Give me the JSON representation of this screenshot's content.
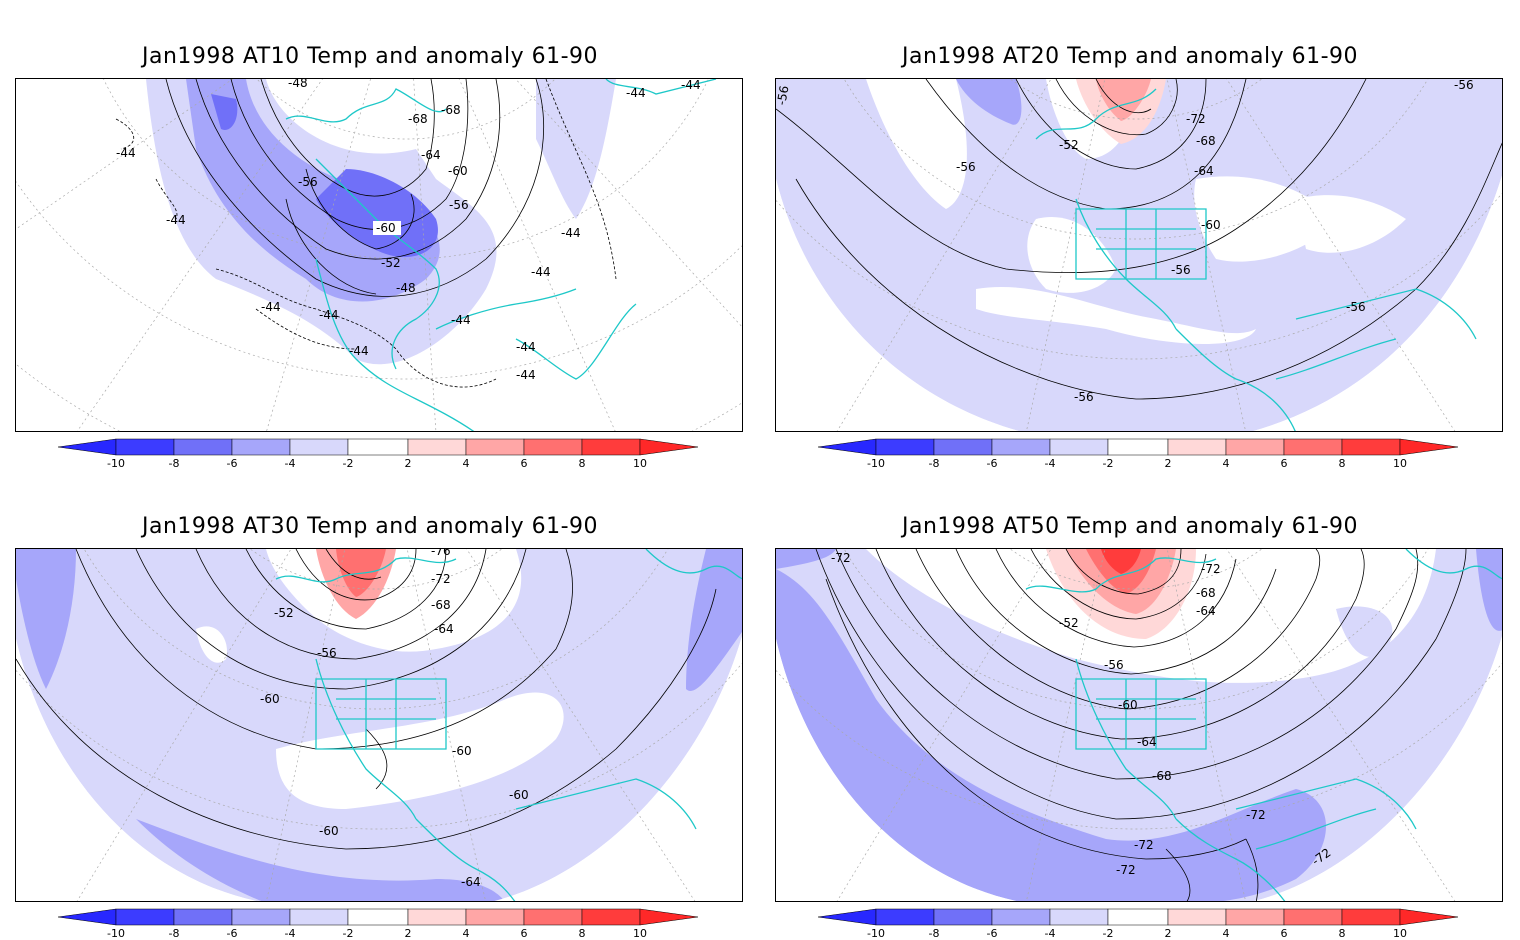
{
  "colorbar": {
    "ticks": [
      "-10",
      "-8",
      "-6",
      "-4",
      "-2",
      "2",
      "4",
      "6",
      "8",
      "10"
    ],
    "colors": {
      "lt_neg10": "#2828ff",
      "neg10_neg8": "#3c3cff",
      "neg8_neg6": "#7070f8",
      "neg6_neg4": "#a6a6fa",
      "neg4_neg2": "#d8d8fb",
      "neg2_2": "#ffffff",
      "p2_4": "#ffd8d8",
      "p4_6": "#ffa6a6",
      "p6_8": "#ff7070",
      "p8_10": "#ff3c3c",
      "gt_10": "#ff2828"
    }
  },
  "coast_color": "#1ec8c8",
  "panels": [
    {
      "title": "Jan1998 AT10 Temp and anomaly 61-90",
      "contour_labels": [
        "-48",
        "-68",
        "-68",
        "-64",
        "-60",
        "-56",
        "-56",
        "-60",
        "-52",
        "-48",
        "-44",
        "-44",
        "-44",
        "-44",
        "-44",
        "-44",
        "-44",
        "-44",
        "-44",
        "-44",
        "-44",
        "-44"
      ]
    },
    {
      "title": "Jan1998 AT20 Temp and anomaly 61-90",
      "contour_labels": [
        "-56",
        "-72",
        "-68",
        "-64",
        "-52",
        "-56",
        "-60",
        "-56",
        "-56",
        "-56",
        "-56"
      ]
    },
    {
      "title": "Jan1998 AT30 Temp and anomaly 61-90",
      "contour_labels": [
        "-76",
        "-72",
        "-68",
        "-64",
        "-52",
        "-56",
        "-60",
        "-60",
        "-60",
        "-60",
        "-64"
      ]
    },
    {
      "title": "Jan1998 AT50 Temp and anomaly 61-90",
      "contour_labels": [
        "-72",
        "-72",
        "-68",
        "-64",
        "-52",
        "-56",
        "-60",
        "-64",
        "-68",
        "-72",
        "-72",
        "-72",
        "-72"
      ]
    }
  ]
}
